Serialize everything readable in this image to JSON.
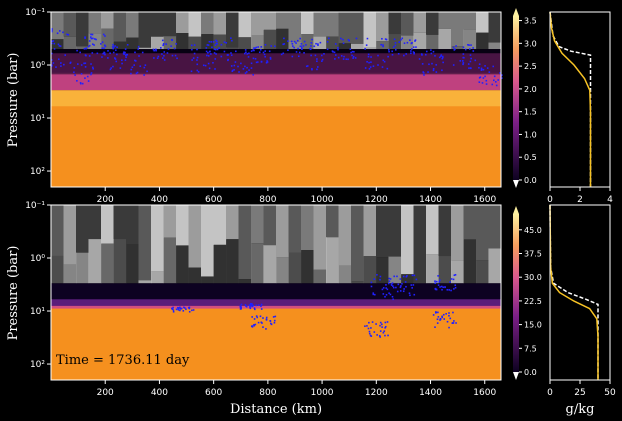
{
  "chart_data": [
    {
      "type": "heatmap",
      "panel": "top",
      "ylabel": "Pressure (bar)",
      "xlabel": "",
      "y_scale": "log",
      "y_inverted": true,
      "xlim": [
        0,
        1660
      ],
      "ylim": [
        200,
        0.1
      ],
      "x_ticks": [
        "200",
        "400",
        "600",
        "800",
        "1000",
        "1200",
        "1400",
        "1600"
      ],
      "y_ticks": [
        "10⁻¹",
        "10⁰",
        "10¹",
        "10²"
      ],
      "shading": {
        "upper_cloud_layer_bar": [
          0.1,
          0.5
        ],
        "dark_band_bar": [
          0.5,
          1.5
        ],
        "magenta_band_bar": [
          0.6,
          3.0
        ],
        "orange_deep_bar": [
          3.0,
          200
        ]
      },
      "colors": {
        "background": "#000000",
        "deep": "#f5901e",
        "magenta": "#a0307a",
        "markers": "#2020ff"
      },
      "colorbar": {
        "ticks": [
          "0.0",
          "0.5",
          "1.0",
          "1.5",
          "2.0",
          "2.5",
          "3.0",
          "3.5"
        ],
        "range": [
          0,
          3.6
        ]
      },
      "profile": {
        "xlim": [
          0,
          4
        ],
        "x_ticks": [
          "0",
          "2",
          "4"
        ],
        "solid_line": [
          {
            "x": 0.0,
            "p": 0.1
          },
          {
            "x": 0.1,
            "p": 0.2
          },
          {
            "x": 0.3,
            "p": 0.35
          },
          {
            "x": 0.8,
            "p": 0.6
          },
          {
            "x": 1.6,
            "p": 1.0
          },
          {
            "x": 2.3,
            "p": 1.8
          },
          {
            "x": 2.65,
            "p": 3.0
          },
          {
            "x": 2.7,
            "p": 8
          },
          {
            "x": 2.7,
            "p": 200
          }
        ],
        "dashed_line": [
          {
            "x": 0.0,
            "p": 0.1
          },
          {
            "x": 0.2,
            "p": 0.28
          },
          {
            "x": 0.6,
            "p": 0.45
          },
          {
            "x": 1.4,
            "p": 0.55
          },
          {
            "x": 2.7,
            "p": 0.65
          },
          {
            "x": 2.7,
            "p": 200
          }
        ]
      }
    },
    {
      "type": "heatmap",
      "panel": "bottom",
      "ylabel": "Pressure (bar)",
      "xlabel": "Distance (km)",
      "y_scale": "log",
      "y_inverted": true,
      "xlim": [
        0,
        1660
      ],
      "ylim": [
        200,
        0.1
      ],
      "x_ticks": [
        "200",
        "400",
        "600",
        "800",
        "1000",
        "1200",
        "1400",
        "1600"
      ],
      "y_ticks": [
        "10⁻¹",
        "10⁰",
        "10¹",
        "10²"
      ],
      "annotation": "Time = 1736.11 day",
      "shading": {
        "upper_cloud_layer_bar": [
          0.1,
          3.0
        ],
        "dark_band_bar": [
          3.0,
          9.0
        ],
        "orange_deep_bar": [
          9.0,
          200
        ]
      },
      "colors": {
        "background": "#000000",
        "deep": "#f5901e",
        "magenta": "#a0307a",
        "markers": "#2020ff"
      },
      "colorbar": {
        "ticks": [
          "0.0",
          "7.5",
          "15.0",
          "22.5",
          "30.0",
          "37.5",
          "45.0"
        ],
        "range": [
          0,
          50
        ]
      },
      "profile": {
        "xlim": [
          0,
          50
        ],
        "x_ticks": [
          "0",
          "25",
          "50"
        ],
        "xlabel": "g/kg",
        "solid_line": [
          {
            "x": 0.0,
            "p": 0.1
          },
          {
            "x": 0.5,
            "p": 1.5
          },
          {
            "x": 2,
            "p": 3.0
          },
          {
            "x": 8,
            "p": 4.5
          },
          {
            "x": 20,
            "p": 6.5
          },
          {
            "x": 33,
            "p": 9
          },
          {
            "x": 39,
            "p": 14
          },
          {
            "x": 40,
            "p": 30
          },
          {
            "x": 40,
            "p": 200
          }
        ],
        "dashed_line": [
          {
            "x": 0.0,
            "p": 0.1
          },
          {
            "x": 0.5,
            "p": 1.5
          },
          {
            "x": 3,
            "p": 3.0
          },
          {
            "x": 15,
            "p": 4.5
          },
          {
            "x": 30,
            "p": 6.0
          },
          {
            "x": 40,
            "p": 7.5
          },
          {
            "x": 40,
            "p": 200
          }
        ]
      }
    }
  ]
}
